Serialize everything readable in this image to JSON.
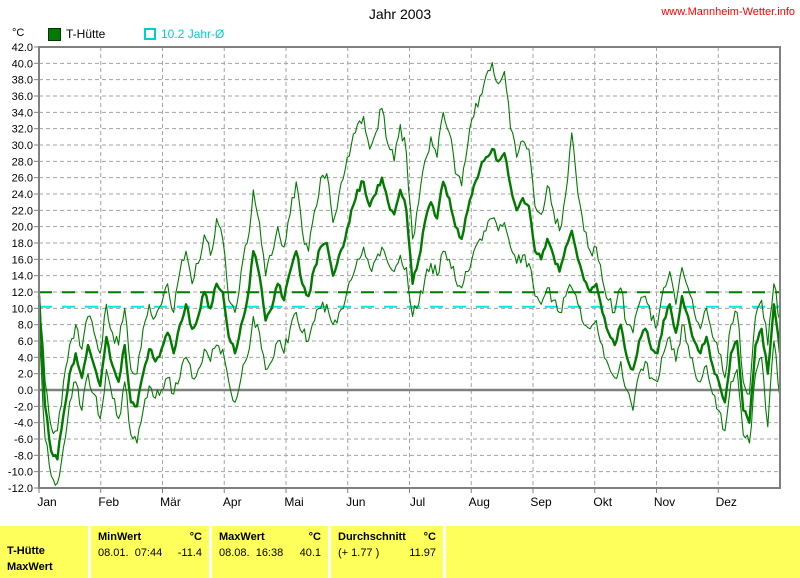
{
  "header": {
    "title": "Jahr 2003",
    "website": "www.Mannheim-Wetter.info"
  },
  "legend": {
    "unit_label": "°C",
    "series1_label": "T-Hütte",
    "series2_label": "10.2 Jahr-Ø"
  },
  "colors": {
    "line_green": "#007B00",
    "longterm_avg_cyan": "#00E8E8",
    "grid_gray": "#A3A3A3",
    "border_gray": "#808080",
    "link_red": "#FF0000",
    "table_yellow": "#FFFF5C"
  },
  "chart_data": {
    "type": "line",
    "title": "Jahr 2003",
    "ylabel": "°C",
    "ylim": [
      -12,
      42
    ],
    "ytick_step": 2,
    "x_months": [
      "Jan",
      "Feb",
      "Mär",
      "Apr",
      "Mai",
      "Jun",
      "Jul",
      "Aug",
      "Sep",
      "Okt",
      "Nov",
      "Dez"
    ],
    "days_in_year": 365,
    "sample_day_first": 1,
    "sample_day_step": 3,
    "grid": true,
    "legend_position": "top-left",
    "line_color": "#007B00",
    "reference_lines": [
      {
        "id": "jahr-mittel",
        "label": "10.2 Jahr-Ø",
        "value": 10.2,
        "color": "#00E8E8",
        "style": "dashed"
      },
      {
        "id": "durchschnitt-2003",
        "label": "Durchschnitt 11.97 °C",
        "value": 11.97,
        "color": "#007B00",
        "style": "dashed"
      },
      {
        "id": "null-grad",
        "label": "0 °C",
        "value": 0,
        "color": "#808080",
        "style": "solid"
      }
    ],
    "series": [
      {
        "id": "t-huette-tagesmax",
        "name": "T-Hütte Tagesmaximum (°C, geschätzt)",
        "thickness": "thin",
        "values": [
          13,
          1,
          -4.5,
          -5,
          1,
          5.5,
          8,
          5,
          9,
          7,
          4.5,
          10.5,
          7,
          5.5,
          10,
          2.5,
          2,
          7.5,
          10.5,
          9,
          10.5,
          13,
          9.5,
          14.5,
          17,
          13,
          15.5,
          19,
          16.5,
          21,
          18.5,
          11,
          9.5,
          14.5,
          18,
          24.5,
          20.5,
          14,
          16.5,
          20,
          17.5,
          21.5,
          25.5,
          19.5,
          17,
          22,
          26,
          26.5,
          20.5,
          24,
          27,
          30,
          32.5,
          33.5,
          29.5,
          31.5,
          34.5,
          30,
          28,
          32.5,
          29,
          18.5,
          23,
          28,
          31,
          28.5,
          34,
          31.5,
          26.5,
          25,
          30,
          33.5,
          36,
          38.5,
          40.1,
          37.5,
          39,
          32,
          28.5,
          30.5,
          29.5,
          22.5,
          21.5,
          25,
          22,
          19.5,
          24,
          31.5,
          24,
          19.5,
          17,
          17.5,
          13.5,
          11,
          9.5,
          12.5,
          8,
          7,
          10.5,
          11.5,
          8.5,
          8,
          12.5,
          14.5,
          10.5,
          15,
          12.5,
          9.5,
          7.5,
          10,
          6.5,
          4.5,
          1.5,
          8,
          9.5,
          1,
          -0.5,
          9,
          11,
          5.5,
          13,
          8.5
        ]
      },
      {
        "id": "t-huette-tagesmin",
        "name": "T-Hütte Tagesminimum (°C, geschätzt)",
        "thickness": "thin",
        "values": [
          7,
          -6,
          -10.5,
          -11.4,
          -7,
          -1.5,
          1,
          -2.5,
          2,
          -0.5,
          -3.5,
          2.5,
          -1,
          -3.5,
          1,
          -5.5,
          -6.5,
          -2.5,
          0.5,
          -1,
          0,
          1.5,
          -0.5,
          1.5,
          4,
          1.5,
          2.5,
          5,
          3.5,
          5.5,
          5,
          1,
          -1.5,
          1.5,
          4,
          9,
          7,
          2.5,
          3.5,
          6,
          4.5,
          7.5,
          9.5,
          7,
          6,
          8.5,
          10,
          10.5,
          8,
          9.5,
          11,
          13.5,
          16,
          17.5,
          15,
          16,
          17.5,
          15.5,
          14.5,
          16.5,
          15,
          9,
          10.5,
          13.5,
          15.5,
          14,
          17,
          16,
          13.5,
          12.5,
          14.5,
          17,
          18.5,
          19.5,
          21,
          19.5,
          20.5,
          17.5,
          15.5,
          16.5,
          15.5,
          11.5,
          10.5,
          12.5,
          11,
          9.5,
          11.5,
          12.5,
          10.5,
          8,
          7.5,
          8.5,
          5.5,
          3,
          1.5,
          3.5,
          0,
          -2.5,
          2,
          3.5,
          1.5,
          1,
          4.5,
          6.5,
          3.5,
          8,
          5.5,
          2.5,
          1,
          3,
          -0.5,
          -2.5,
          -5,
          1,
          2.5,
          -5.5,
          -6.5,
          2,
          4,
          -4.5,
          6,
          -1
        ]
      },
      {
        "id": "t-huette-tagesmittel",
        "name": "T-Hütte Tagesmittel (°C, geschätzt)",
        "thickness": "thick",
        "values": [
          11.5,
          -2,
          -7.5,
          -8.5,
          -3,
          2,
          4.5,
          1.5,
          5.5,
          3,
          0.5,
          6.5,
          3,
          1,
          5.5,
          -1.5,
          -2,
          2,
          5,
          3.5,
          5,
          7,
          4.5,
          8,
          10.5,
          7.5,
          9,
          12,
          10,
          13,
          12,
          6.5,
          4.5,
          8,
          11,
          17,
          14,
          8.5,
          10,
          13,
          11,
          14.5,
          17,
          13,
          11.5,
          15,
          17.5,
          18,
          14,
          16.5,
          18.5,
          22,
          24.5,
          25.5,
          22.5,
          24,
          26,
          23,
          21.5,
          24.5,
          22,
          13,
          16,
          20.5,
          23,
          21,
          25.5,
          23.5,
          20,
          18.5,
          22,
          25,
          27,
          28.5,
          29.5,
          28,
          29,
          25,
          22,
          23.5,
          22.5,
          17,
          16,
          18.5,
          16.5,
          14.5,
          17.5,
          19.5,
          16,
          13.5,
          12,
          13,
          9.5,
          7,
          5.5,
          8,
          4,
          2.5,
          6,
          7.5,
          5,
          4.5,
          8.5,
          10.5,
          7,
          11.5,
          9,
          6,
          4.5,
          6.5,
          3,
          1,
          -1.5,
          4.5,
          6,
          -2.5,
          -4,
          5.5,
          7.5,
          2,
          10.5,
          4.5
        ]
      }
    ]
  },
  "stats_table": {
    "series_label": "T-Hütte",
    "series_sublabel": "MaxWert",
    "min": {
      "label": "MinWert",
      "unit": "°C",
      "datetime": "08.01.  07:44",
      "value": "-11.4"
    },
    "max": {
      "label": "MaxWert",
      "unit": "°C",
      "datetime": "08.08.  16:38",
      "value": "40.1"
    },
    "avg": {
      "label": "Durchschnitt",
      "unit": "°C",
      "deviation": "(+ 1.77 )",
      "value": "11.97"
    }
  }
}
